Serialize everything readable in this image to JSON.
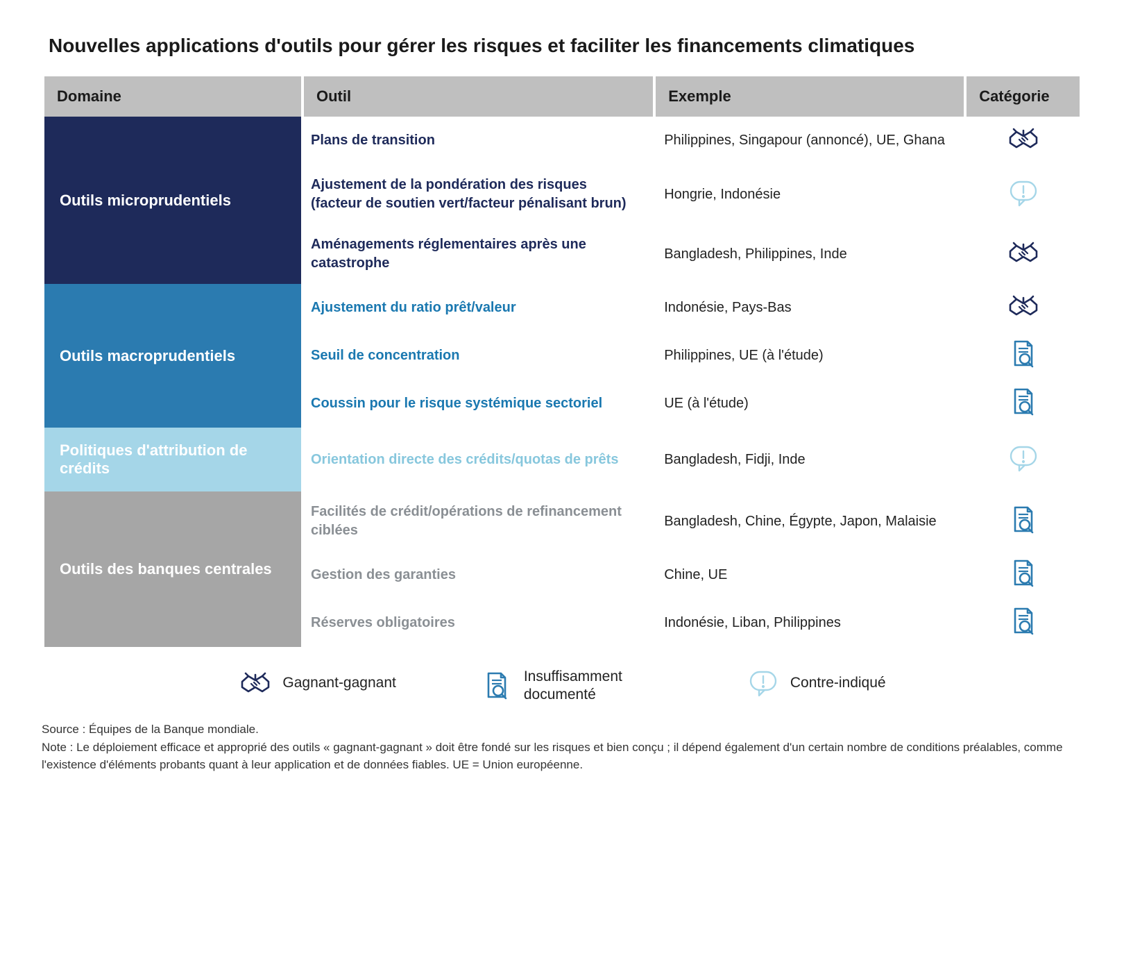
{
  "title": "Nouvelles applications d'outils pour gérer les risques et faciliter les financements climatiques",
  "columns": {
    "domain": "Domaine",
    "tool": "Outil",
    "example": "Exemple",
    "category": "Catégorie"
  },
  "colors": {
    "header_bg": "#bfbfbf",
    "micro_bg": "#1e2a5a",
    "micro_text": "#1e2a5a",
    "macro_bg": "#2b7bb0",
    "macro_text": "#1a78b0",
    "credit_bg": "#a5d6e8",
    "credit_text": "#87c7dd",
    "central_bg": "#a6a6a6",
    "central_text": "#8a8f94",
    "handshake_stroke": "#1e2a5a",
    "doc_stroke": "#2b7bb0",
    "bubble_stroke": "#a5d6e8"
  },
  "sections": [
    {
      "id": "micro",
      "domain": "Outils microprudentiels",
      "bg": "#1e2a5a",
      "text_color": "#1e2a5a",
      "rows": [
        {
          "tool": "Plans de transition",
          "example": "Philippines, Singapour (annoncé), UE, Ghana",
          "icon": "handshake"
        },
        {
          "tool": "Ajustement de la pondération des risques (facteur de soutien vert/facteur pénalisant brun)",
          "example": "Hongrie, Indonésie",
          "icon": "bubble"
        },
        {
          "tool": "Aménagements réglementaires après une catastrophe",
          "example": "Bangladesh, Philippines, Inde",
          "icon": "handshake"
        }
      ]
    },
    {
      "id": "macro",
      "domain": "Outils macroprudentiels",
      "bg": "#2b7bb0",
      "text_color": "#1a78b0",
      "rows": [
        {
          "tool": "Ajustement du ratio prêt/valeur",
          "example": "Indonésie, Pays-Bas",
          "icon": "handshake"
        },
        {
          "tool": "Seuil de concentration",
          "example": "Philippines, UE (à l'étude)",
          "icon": "doc"
        },
        {
          "tool": "Coussin pour le risque systémique sectoriel",
          "example": "UE (à l'étude)",
          "icon": "doc"
        }
      ]
    },
    {
      "id": "credit",
      "domain": "Politiques d'attribution de crédits",
      "bg": "#a5d6e8",
      "text_color": "#87c7dd",
      "rows": [
        {
          "tool": "Orientation directe des crédits/quotas de prêts",
          "example": "Bangladesh, Fidji, Inde",
          "icon": "bubble"
        }
      ]
    },
    {
      "id": "central",
      "domain": "Outils des banques centrales",
      "bg": "#a6a6a6",
      "text_color": "#8a8f94",
      "rows": [
        {
          "tool": "Facilités de crédit/opérations de refinancement ciblées",
          "example": "Bangladesh, Chine, Égypte, Japon, Malaisie",
          "icon": "doc"
        },
        {
          "tool": "Gestion des garanties",
          "example": "Chine, UE",
          "icon": "doc"
        },
        {
          "tool": "Réserves obligatoires",
          "example": "Indonésie, Liban, Philippines",
          "icon": "doc"
        }
      ]
    }
  ],
  "legend": {
    "handshake": "Gagnant-gagnant",
    "doc": "Insuffisamment documenté",
    "bubble": "Contre-indiqué"
  },
  "notes": {
    "source": "Source : Équipes de la Banque mondiale.",
    "note": "Note : Le déploiement efficace et approprié des outils « gagnant-gagnant » doit être fondé sur les risques et bien conçu ; il dépend également d'un certain nombre de conditions préalables, comme l'existence d'éléments probants quant à leur application et de données fiables. UE = Union européenne."
  }
}
